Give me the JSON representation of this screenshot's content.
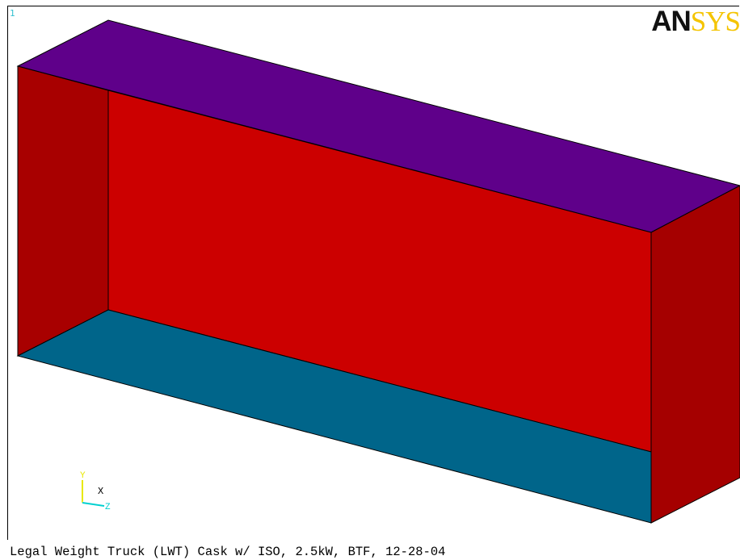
{
  "window": {
    "number": "1"
  },
  "logo": {
    "text_dark": "AN",
    "text_yellow": "SYS"
  },
  "model": {
    "face_colors": {
      "top": "#5f008a",
      "back": "#cc0000",
      "left": "#a80000",
      "right": "#a50000",
      "bottom": "#00658a",
      "edge": "#000000"
    }
  },
  "triad": {
    "axis_labels": {
      "y": "Y",
      "x": "X",
      "z": "Z"
    },
    "colors": {
      "y": "#e8e800",
      "x": "#ffffff",
      "z": "#00d0d0"
    }
  },
  "caption": {
    "text": "Legal Weight Truck (LWT) Cask w/ ISO, 2.5kW, BTF, 12-28-04"
  }
}
